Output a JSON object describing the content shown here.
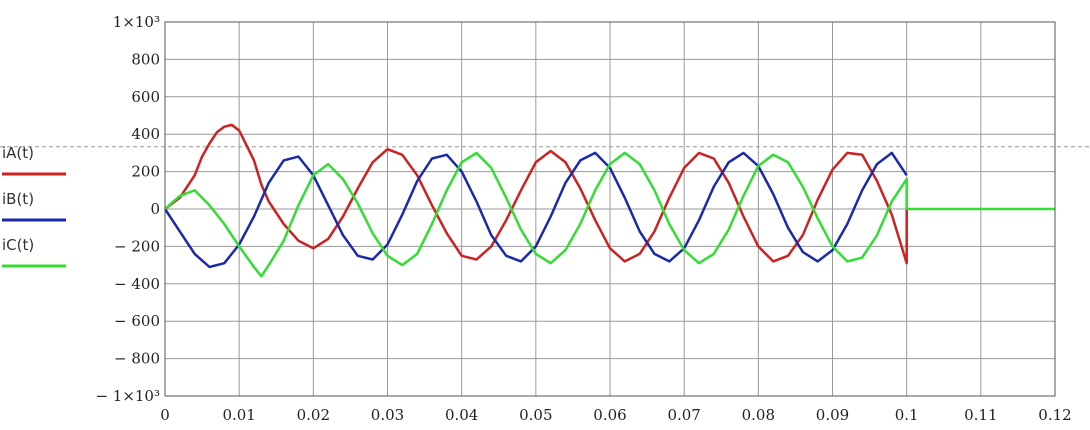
{
  "chart_data": {
    "type": "line",
    "xlim": [
      0,
      0.12
    ],
    "ylim": [
      -1000,
      1000
    ],
    "x_ticks": [
      0,
      0.01,
      0.02,
      0.03,
      0.04,
      0.05,
      0.06,
      0.07,
      0.08,
      0.09,
      0.1,
      0.11,
      0.12
    ],
    "x_tick_labels": [
      "0",
      "0.01",
      "0.02",
      "0.03",
      "0.04",
      "0.05",
      "0.06",
      "0.07",
      "0.08",
      "0.09",
      "0.1",
      "0.11",
      "0.12"
    ],
    "y_ticks": [
      1000,
      800,
      600,
      400,
      200,
      0,
      -200,
      -400,
      -600,
      -800,
      -1000
    ],
    "y_tick_labels": [
      "1×10³",
      "800",
      "600",
      "400",
      "200",
      "0",
      "− 200",
      "− 400",
      "− 600",
      "− 800",
      "− 1×10³"
    ],
    "grid": true,
    "reference_line": {
      "y": 333,
      "style": "dashed"
    },
    "legend_position": "left",
    "series": [
      {
        "name": "iA(t)",
        "color": "#cc2222",
        "x": [
          0,
          0.002,
          0.004,
          0.005,
          0.006,
          0.007,
          0.008,
          0.009,
          0.01,
          0.011,
          0.012,
          0.013,
          0.014,
          0.016,
          0.018,
          0.02,
          0.022,
          0.024,
          0.026,
          0.028,
          0.03,
          0.032,
          0.034,
          0.036,
          0.038,
          0.04,
          0.042,
          0.044,
          0.046,
          0.048,
          0.05,
          0.052,
          0.054,
          0.056,
          0.058,
          0.06,
          0.062,
          0.064,
          0.066,
          0.068,
          0.07,
          0.072,
          0.074,
          0.076,
          0.078,
          0.08,
          0.082,
          0.084,
          0.086,
          0.088,
          0.09,
          0.092,
          0.094,
          0.096,
          0.098,
          0.1,
          0.1
        ],
        "y": [
          0,
          60,
          180,
          280,
          350,
          410,
          440,
          450,
          420,
          340,
          260,
          130,
          40,
          -80,
          -170,
          -210,
          -160,
          -40,
          110,
          250,
          320,
          290,
          180,
          20,
          -130,
          -250,
          -270,
          -200,
          -60,
          100,
          250,
          310,
          250,
          110,
          -60,
          -210,
          -280,
          -240,
          -120,
          60,
          220,
          300,
          270,
          140,
          -40,
          -200,
          -280,
          -250,
          -140,
          50,
          210,
          300,
          290,
          150,
          -30,
          -290,
          0
        ]
      },
      {
        "name": "iB(t)",
        "color": "#1a2aa8",
        "x": [
          0,
          0.002,
          0.004,
          0.006,
          0.008,
          0.01,
          0.012,
          0.014,
          0.016,
          0.018,
          0.02,
          0.022,
          0.024,
          0.026,
          0.028,
          0.03,
          0.032,
          0.034,
          0.036,
          0.038,
          0.04,
          0.042,
          0.044,
          0.046,
          0.048,
          0.05,
          0.052,
          0.054,
          0.056,
          0.058,
          0.06,
          0.062,
          0.064,
          0.066,
          0.068,
          0.07,
          0.072,
          0.074,
          0.076,
          0.078,
          0.08,
          0.082,
          0.084,
          0.086,
          0.088,
          0.09,
          0.092,
          0.094,
          0.096,
          0.098,
          0.1
        ],
        "y": [
          0,
          -120,
          -240,
          -310,
          -290,
          -190,
          -40,
          140,
          260,
          280,
          180,
          20,
          -140,
          -250,
          -270,
          -190,
          -30,
          150,
          270,
          290,
          200,
          40,
          -140,
          -250,
          -280,
          -200,
          -40,
          140,
          260,
          300,
          220,
          60,
          -120,
          -240,
          -280,
          -210,
          -60,
          120,
          250,
          300,
          230,
          80,
          -100,
          -230,
          -280,
          -220,
          -80,
          100,
          240,
          300,
          180
        ]
      },
      {
        "name": "iC(t)",
        "color": "#33dd33",
        "x": [
          0,
          0.002,
          0.004,
          0.006,
          0.008,
          0.01,
          0.012,
          0.013,
          0.014,
          0.016,
          0.018,
          0.02,
          0.022,
          0.024,
          0.026,
          0.028,
          0.03,
          0.032,
          0.034,
          0.036,
          0.038,
          0.04,
          0.042,
          0.044,
          0.046,
          0.048,
          0.05,
          0.052,
          0.054,
          0.056,
          0.058,
          0.06,
          0.062,
          0.064,
          0.066,
          0.068,
          0.07,
          0.072,
          0.074,
          0.076,
          0.078,
          0.08,
          0.082,
          0.084,
          0.086,
          0.088,
          0.09,
          0.092,
          0.094,
          0.096,
          0.098,
          0.1,
          0.1,
          0.12
        ],
        "y": [
          0,
          70,
          100,
          20,
          -80,
          -200,
          -310,
          -360,
          -300,
          -170,
          20,
          180,
          240,
          160,
          30,
          -130,
          -250,
          -300,
          -240,
          -80,
          100,
          250,
          300,
          220,
          60,
          -110,
          -240,
          -290,
          -220,
          -80,
          100,
          240,
          300,
          240,
          100,
          -80,
          -220,
          -290,
          -240,
          -110,
          70,
          230,
          290,
          250,
          120,
          -50,
          -200,
          -280,
          -260,
          -140,
          40,
          160,
          0,
          0
        ]
      }
    ]
  }
}
